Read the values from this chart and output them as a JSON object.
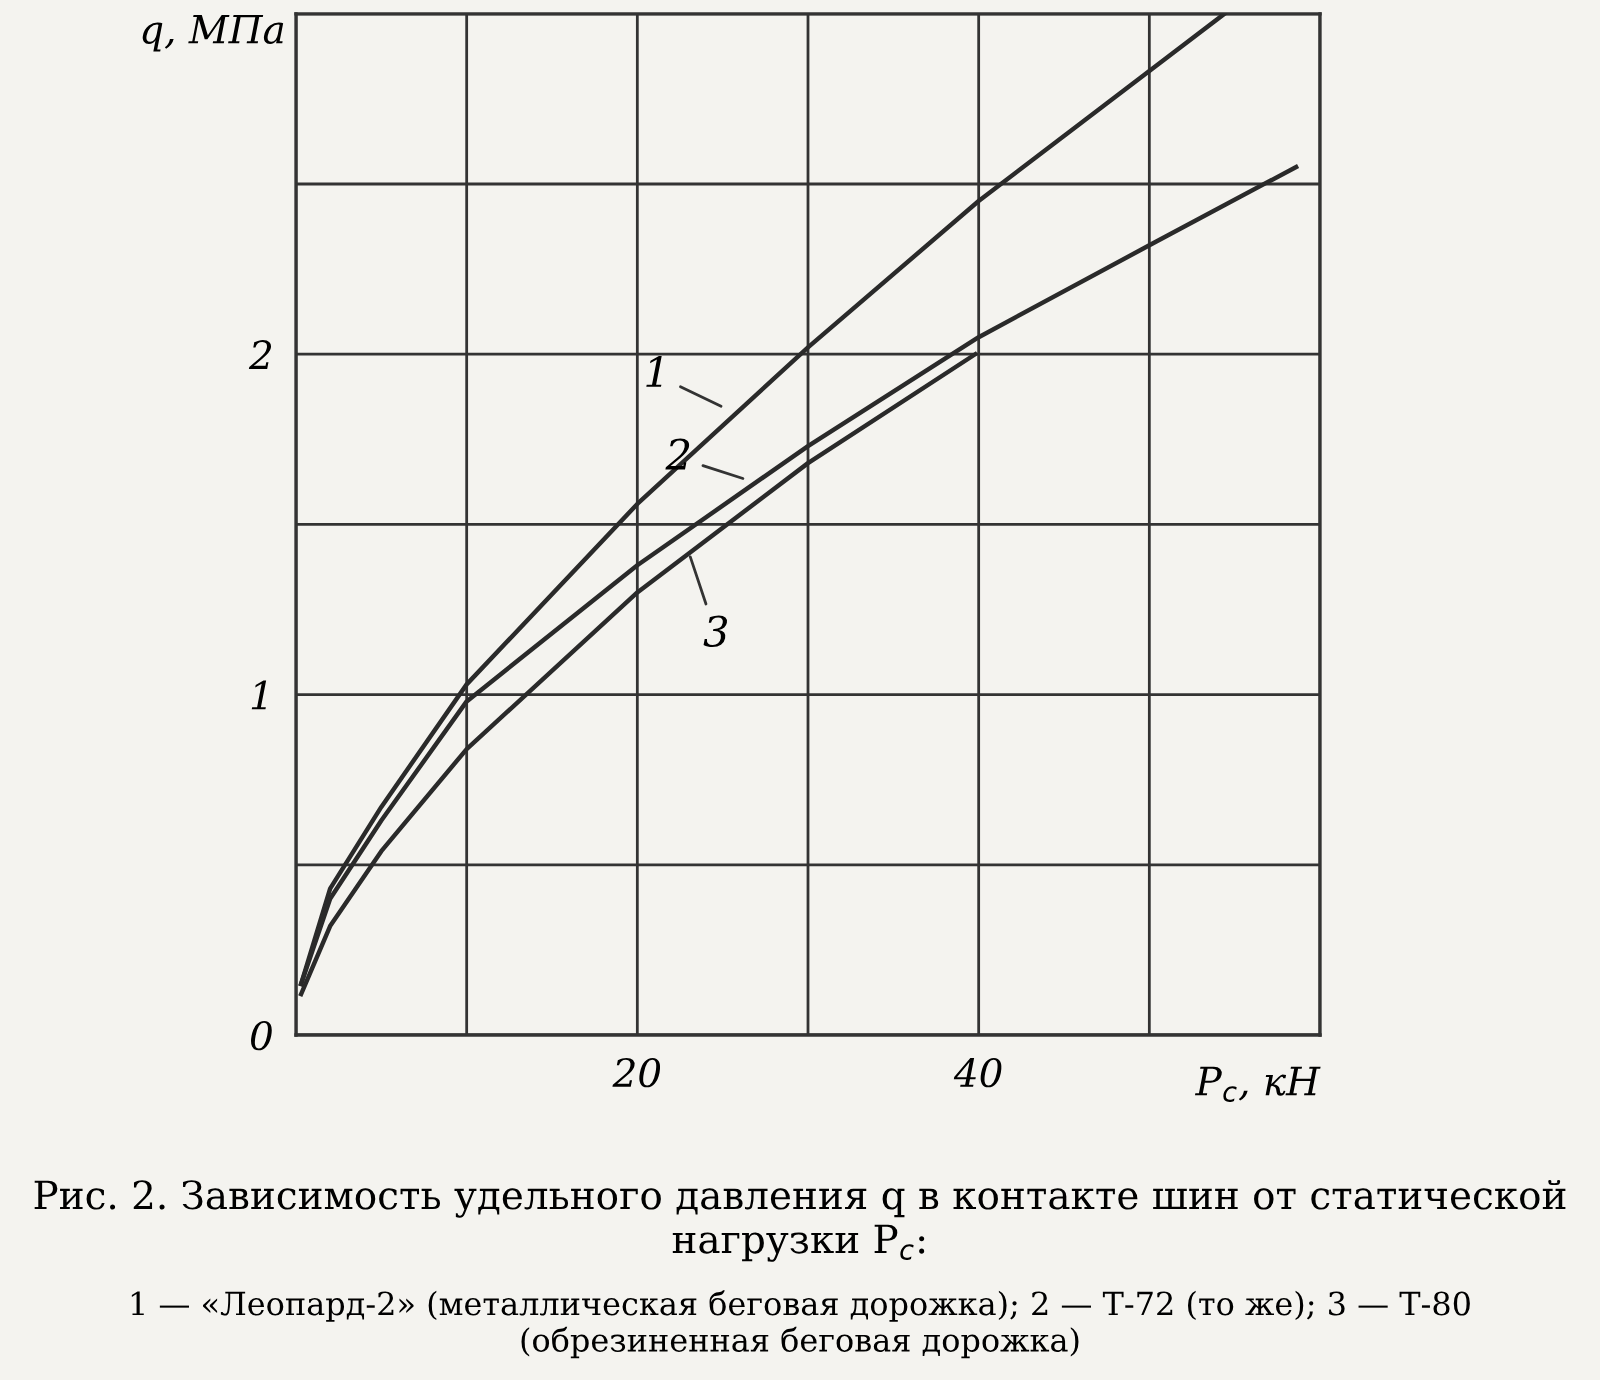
{
  "chart_data": {
    "type": "line",
    "xlabel": "P$_{c}$, кН",
    "ylabel": "q, МПа",
    "xlim": [
      0,
      60
    ],
    "ylim": [
      0,
      3
    ],
    "xticks": [
      {
        "value": 0,
        "label": null
      },
      {
        "value": 10,
        "label": null
      },
      20,
      {
        "value": 30,
        "label": null
      },
      40,
      {
        "value": 50,
        "label": null
      },
      {
        "value": 60,
        "label": null
      }
    ],
    "yticks": [
      0,
      {
        "value": 0.5,
        "label": null
      },
      1,
      {
        "value": 1.5,
        "label": null
      },
      2,
      {
        "value": 2.5,
        "label": null
      },
      {
        "value": 3,
        "label": null
      }
    ],
    "grid": true,
    "marker": "none",
    "line_style": "solid",
    "series": [
      {
        "color": "#2a2a2a",
        "x": [
          0.3,
          2,
          5,
          10,
          20,
          30,
          40,
          54.4
        ],
        "values": [
          0.15,
          0.43,
          0.67,
          1.03,
          1.56,
          2.02,
          2.45,
          3.0
        ]
      },
      {
        "color": "#2a2a2a",
        "x": [
          0.3,
          2,
          5,
          10,
          20,
          30,
          40,
          50,
          58.6
        ],
        "values": [
          0.15,
          0.4,
          0.63,
          0.98,
          1.38,
          1.73,
          2.05,
          2.32,
          2.55
        ]
      },
      {
        "color": "#2a2a2a",
        "x": [
          0.3,
          2,
          5,
          10,
          20,
          30,
          39.8
        ],
        "values": [
          0.12,
          0.32,
          0.54,
          0.84,
          1.3,
          1.68,
          2.0
        ]
      }
    ],
    "annotations": [
      {
        "text": "1",
        "x": 25.2,
        "y": 1.84
      },
      {
        "text": "2",
        "x": 26.5,
        "y": 1.63
      },
      {
        "text": "3",
        "x": 23,
        "y": 1.42
      },
      "Рис. 2. Зависимость удельного давления q в контакте шин от статической нагрузки P$_{c}$:",
      "1 — «Леопард-2» (металлическая беговая дорожка); 2 — Т-72 (то же); 3 — Т-80 (обрезиненная беговая дорожка)"
    ]
  }
}
